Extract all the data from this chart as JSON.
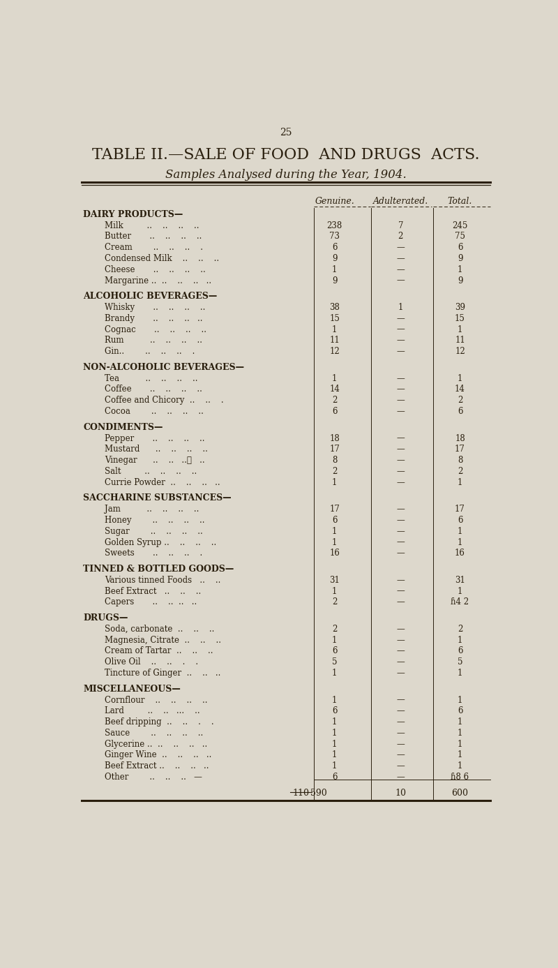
{
  "page_number": "25",
  "title_line1": "TABLE II.—SALE OF FOOD  AND DRUGS  ACTS.",
  "title_line2": "Samples Analysed during the Year, 1904.",
  "col_headers": [
    "Genuine.",
    "Adulterated.",
    "Total."
  ],
  "background_color": "#ddd8cc",
  "text_color": "#2a1f0e",
  "sections": [
    {
      "header": "DAIRY PRODUCTS—",
      "items": [
        {
          "name": "Milk         ..    ..    ..    ..",
          "genuine": "238",
          "adulterated": "7",
          "total": "245"
        },
        {
          "name": "Butter       ..    ..    ..    ..",
          "genuine": "73",
          "adulterated": "2",
          "total": "75"
        },
        {
          "name": "Cream        ..    ..    ..    .",
          "genuine": "6",
          "adulterated": "—",
          "total": "6"
        },
        {
          "name": "Condensed Milk    ..    ..    ..",
          "genuine": "9",
          "adulterated": "—",
          "total": "9"
        },
        {
          "name": "Cheese       ..    ..    ..    ..",
          "genuine": "1",
          "adulterated": "—",
          "total": "1"
        },
        {
          "name": "Margarine ..  ..    ..    ..   ..",
          "genuine": "9",
          "adulterated": "—",
          "total": "9"
        }
      ]
    },
    {
      "header": "ALCOHOLIC BEVERAGES—",
      "items": [
        {
          "name": "Whisky       ..    ..    ..    ..",
          "genuine": "38",
          "adulterated": "1",
          "total": "39"
        },
        {
          "name": "Brandy       ..    ..    ..   ..",
          "genuine": "15",
          "adulterated": "—",
          "total": "15"
        },
        {
          "name": "Cognac       ..    ..    ..    ..",
          "genuine": "1",
          "adulterated": "—",
          "total": "1"
        },
        {
          "name": "Rum          ..    ..    ..    ..",
          "genuine": "11",
          "adulterated": "—",
          "total": "11"
        },
        {
          "name": "Gin..        ..    ..    ..    .",
          "genuine": "12",
          "adulterated": "—",
          "total": "12"
        }
      ]
    },
    {
      "header": "NON-ALCOHOLIC BEVERAGES—",
      "items": [
        {
          "name": "Tea          ..    ..    ..    ..",
          "genuine": "1",
          "adulterated": "—",
          "total": "1"
        },
        {
          "name": "Coffee       ..    ..    ..    ..",
          "genuine": "14",
          "adulterated": "—",
          "total": "14"
        },
        {
          "name": "Coffee and Chicory  ..    ..    .",
          "genuine": "2",
          "adulterated": "—",
          "total": "2"
        },
        {
          "name": "Cocoa        ..    ..    ..    ..",
          "genuine": "6",
          "adulterated": "—",
          "total": "6"
        }
      ]
    },
    {
      "header": "CONDIMENTS—",
      "items": [
        {
          "name": "Pepper       ..    ..    ..    ..",
          "genuine": "18",
          "adulterated": "—",
          "total": "18"
        },
        {
          "name": "Mustard      ..    ..    ..    ..",
          "genuine": "17",
          "adulterated": "—",
          "total": "17"
        },
        {
          "name": "Vinegar      ..    ..   ..‧   ..",
          "genuine": "8",
          "adulterated": "—",
          "total": "8"
        },
        {
          "name": "Salt         ..    ..    ..    ..",
          "genuine": "2",
          "adulterated": "—",
          "total": "2"
        },
        {
          "name": "Currie Powder  ..    ..    ..   ..",
          "genuine": "1",
          "adulterated": "—",
          "total": "1"
        }
      ]
    },
    {
      "header": "SACCHARINE SUBSTANCES—",
      "items": [
        {
          "name": "Jam          ..    ..    ..    ..",
          "genuine": "17",
          "adulterated": "—",
          "total": "17"
        },
        {
          "name": "Honey        ..    ..    ..    ..",
          "genuine": "6",
          "adulterated": "—",
          "total": "6"
        },
        {
          "name": "Sugar        ..    ..    ..    ..",
          "genuine": "1",
          "adulterated": "—",
          "total": "1"
        },
        {
          "name": "Golden Syrup ..    ..    ..    ..",
          "genuine": "1",
          "adulterated": "—",
          "total": "1"
        },
        {
          "name": "Sweets       ..    ..    ..    .",
          "genuine": "16",
          "adulterated": "—",
          "total": "16"
        }
      ]
    },
    {
      "header": "TINNED & BOTTLED GOODS—",
      "items": [
        {
          "name": "Various tinned Foods   ..    ..",
          "genuine": "31",
          "adulterated": "—",
          "total": "31"
        },
        {
          "name": "Beef Extract   ..    ..    ..",
          "genuine": "1",
          "adulterated": "—",
          "total": "1"
        },
        {
          "name": "Capers       ..    ..  ..   ..",
          "genuine": "2",
          "adulterated": "—",
          "total": "ɦ4 2"
        }
      ]
    },
    {
      "header": "DRUGS—",
      "items": [
        {
          "name": "Soda, carbonate  ..    ..    ..",
          "genuine": "2",
          "adulterated": "—",
          "total": "2"
        },
        {
          "name": "Magnesia, Citrate  ..    ..    ..",
          "genuine": "1",
          "adulterated": "—",
          "total": "1"
        },
        {
          "name": "Cream of Tartar  ..    ..    ..",
          "genuine": "6",
          "adulterated": "—",
          "total": "6"
        },
        {
          "name": "Olive Oil    ..    ..    .    .",
          "genuine": "5",
          "adulterated": "—",
          "total": "5"
        },
        {
          "name": "Tincture of Ginger  ..    ..   ..",
          "genuine": "1",
          "adulterated": "—",
          "total": "1"
        }
      ]
    },
    {
      "header": "MISCELLANEOUS—",
      "items": [
        {
          "name": "Cornflour    ..    ..    ..    ..",
          "genuine": "1",
          "adulterated": "—",
          "total": "1"
        },
        {
          "name": "Lard         ..    ..   ...    ..",
          "genuine": "6",
          "adulterated": "—",
          "total": "6"
        },
        {
          "name": "Beef dripping  ..    ..    .    .",
          "genuine": "1",
          "adulterated": "—",
          "total": "1"
        },
        {
          "name": "Sauce        ..    ..    ..    ..",
          "genuine": "1",
          "adulterated": "—",
          "total": "1"
        },
        {
          "name": "Glycerine ..  ..    ..    ..   ..",
          "genuine": "1",
          "adulterated": "—",
          "total": "1"
        },
        {
          "name": "Ginger Wine  ..    ..    ..   ..",
          "genuine": "1",
          "adulterated": "—",
          "total": "1"
        },
        {
          "name": "Beef Extract ..    ..    ..   ..",
          "genuine": "1",
          "adulterated": "—",
          "total": "1"
        },
        {
          "name": "Other        ..    ..    ..   —",
          "genuine": "6",
          "adulterated": "—",
          "total": "ɦ8 6"
        }
      ]
    }
  ],
  "totals_genuine": "590",
  "totals_genuine_strikethrough": "110",
  "totals_adulterated": "10",
  "totals_total": "600"
}
